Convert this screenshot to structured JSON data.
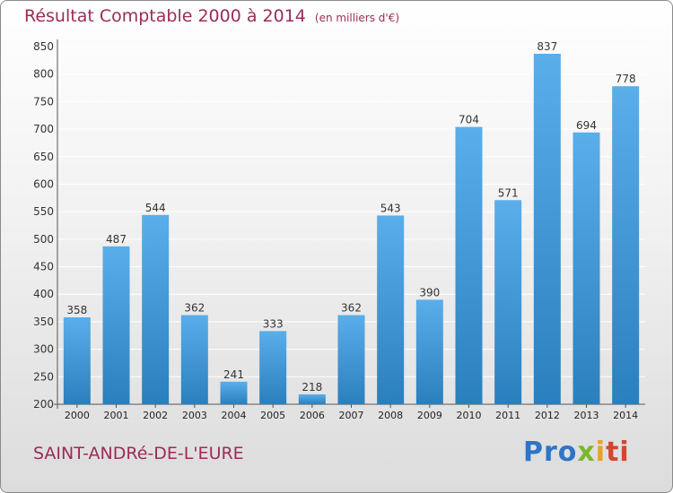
{
  "colors": {
    "title": "#9c2b57",
    "bar_light": "#5aaeea",
    "bar_dark": "#2a7fbd",
    "grid": "#ffffff"
  },
  "footer": {
    "commune": "SAINT-ANDRé-DE-L'EURE",
    "logo": "Proxiti"
  },
  "chart_data": {
    "type": "bar",
    "title": "Résultat Comptable 2000 à 2014",
    "subtitle": "(en milliers d'€)",
    "categories": [
      "2000",
      "2001",
      "2002",
      "2003",
      "2004",
      "2005",
      "2006",
      "2007",
      "2008",
      "2009",
      "2010",
      "2011",
      "2012",
      "2013",
      "2014"
    ],
    "values": [
      358,
      487,
      544,
      362,
      241,
      333,
      218,
      362,
      543,
      390,
      704,
      571,
      837,
      694,
      778
    ],
    "yticks": [
      200,
      250,
      300,
      350,
      400,
      450,
      500,
      550,
      600,
      650,
      700,
      750,
      800,
      850
    ],
    "ylim": [
      200,
      850
    ],
    "xlabel": "",
    "ylabel": "",
    "grid": true,
    "legend": "none"
  }
}
